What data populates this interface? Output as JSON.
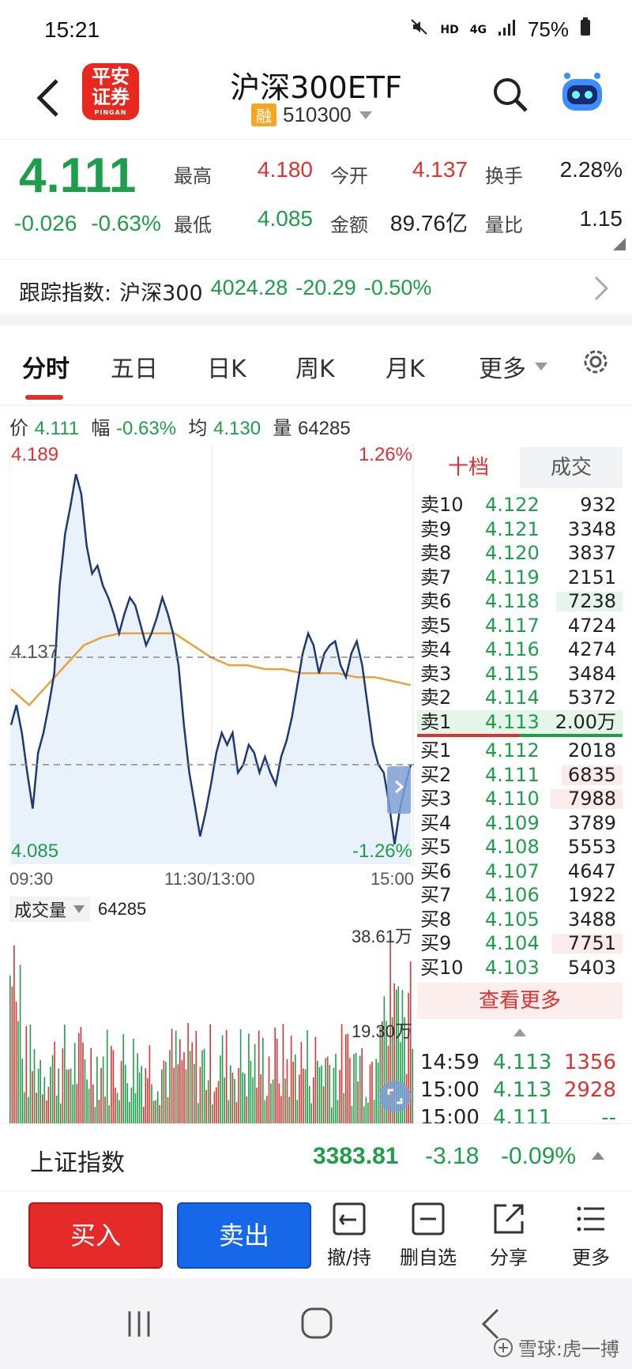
{
  "status": {
    "time": "15:21",
    "network": "HD",
    "signal": "4G",
    "battery": "75%"
  },
  "header": {
    "title": "沪深300ETF",
    "tag": "融",
    "code": "510300",
    "logo_top": "平安",
    "logo_bottom": "证券",
    "logo_sub": "PINGAN"
  },
  "quote": {
    "price": "4.111",
    "change": "-0.026",
    "change_pct": "-0.63%",
    "high_label": "最高",
    "high": "4.180",
    "low_label": "最低",
    "low": "4.085",
    "open_label": "今开",
    "open": "4.137",
    "amount_label": "金额",
    "amount": "89.76亿",
    "turnover_label": "换手",
    "turnover": "2.28%",
    "vol_ratio_label": "量比",
    "vol_ratio": "1.15"
  },
  "track": {
    "label": "跟踪指数:",
    "name": "沪深300",
    "value": "4024.28",
    "change": "-20.29",
    "pct": "-0.50%"
  },
  "tabs": [
    "分时",
    "五日",
    "日K",
    "周K",
    "月K",
    "更多"
  ],
  "info": {
    "price_label": "价",
    "price": "4.111",
    "range_label": "幅",
    "range": "-0.63%",
    "avg_label": "均",
    "avg": "4.130",
    "vol_label": "量",
    "vol": "64285"
  },
  "chart_labels": {
    "top_left": "4.189",
    "mid_left": "4.137",
    "bottom_left": "4.085",
    "top_right": "1.26%",
    "bottom_right": "-1.26%",
    "t_start": "09:30",
    "t_mid": "11:30/13:00",
    "t_end": "15:00"
  },
  "volume": {
    "selector": "成交量",
    "value": "64285",
    "max_label": "38.61万",
    "mid_label": "19.30万"
  },
  "book": {
    "tab_on": "十档",
    "tab_off": "成交",
    "asks": [
      {
        "label": "卖10",
        "price": "4.122",
        "vol": "932",
        "fill": 0.0
      },
      {
        "label": "卖9",
        "price": "4.121",
        "vol": "3348",
        "fill": 0.0
      },
      {
        "label": "卖8",
        "price": "4.120",
        "vol": "3837",
        "fill": 0.0
      },
      {
        "label": "卖7",
        "price": "4.119",
        "vol": "2151",
        "fill": 0.0
      },
      {
        "label": "卖6",
        "price": "4.118",
        "vol": "7238",
        "fill": 0.35
      },
      {
        "label": "卖5",
        "price": "4.117",
        "vol": "4724",
        "fill": 0.0
      },
      {
        "label": "卖4",
        "price": "4.116",
        "vol": "4274",
        "fill": 0.0
      },
      {
        "label": "卖3",
        "price": "4.115",
        "vol": "3484",
        "fill": 0.0
      },
      {
        "label": "卖2",
        "price": "4.114",
        "vol": "5372",
        "fill": 0.0
      },
      {
        "label": "卖1",
        "price": "4.113",
        "vol": "2.00万",
        "fill": 1.0
      }
    ],
    "bids": [
      {
        "label": "买1",
        "price": "4.112",
        "vol": "2018",
        "fill": 0.0
      },
      {
        "label": "买2",
        "price": "4.111",
        "vol": "6835",
        "fill": 0.32
      },
      {
        "label": "买3",
        "price": "4.110",
        "vol": "7988",
        "fill": 0.38
      },
      {
        "label": "买4",
        "price": "4.109",
        "vol": "3789",
        "fill": 0.0
      },
      {
        "label": "买5",
        "price": "4.108",
        "vol": "5553",
        "fill": 0.0
      },
      {
        "label": "买6",
        "price": "4.107",
        "vol": "4647",
        "fill": 0.0
      },
      {
        "label": "买7",
        "price": "4.106",
        "vol": "1922",
        "fill": 0.0
      },
      {
        "label": "买8",
        "price": "4.105",
        "vol": "3488",
        "fill": 0.0
      },
      {
        "label": "买9",
        "price": "4.104",
        "vol": "7751",
        "fill": 0.37
      },
      {
        "label": "买10",
        "price": "4.103",
        "vol": "5403",
        "fill": 0.0
      }
    ],
    "more": "查看更多",
    "trades": [
      {
        "time": "14:59",
        "price": "4.113",
        "vol": "1356"
      },
      {
        "time": "15:00",
        "price": "4.113",
        "vol": "2928"
      },
      {
        "time": "15:00",
        "price": "4.111",
        "vol": "--"
      }
    ]
  },
  "index_bar": {
    "name": "上证指数",
    "value": "3383.81",
    "change": "-3.18",
    "pct": "-0.09%"
  },
  "actions": {
    "buy": "买入",
    "sell": "卖出",
    "cancel": "撤/持",
    "remove": "删自选",
    "share": "分享",
    "more": "更多"
  },
  "watermark": "雪球:虎一搏",
  "colors": {
    "up": "#e03131",
    "down": "#1e9e4a",
    "line": "#1f3a73",
    "avg": "#e8a23a",
    "buy": "#e52a2a",
    "sell": "#1668e8"
  },
  "chart_data": {
    "type": "line",
    "ylim": [
      4.085,
      4.189
    ],
    "prev_close": 4.137,
    "x_labels": [
      "09:30",
      "11:30/13:00",
      "15:00"
    ],
    "series": [
      {
        "values": [
          4.12,
          4.125,
          4.118,
          4.108,
          4.099,
          4.113,
          4.118,
          4.125,
          4.133,
          4.155,
          4.168,
          4.175,
          4.183,
          4.178,
          4.165,
          4.158,
          4.16,
          4.155,
          4.152,
          4.148,
          4.143,
          4.148,
          4.152,
          4.15,
          4.145,
          4.14,
          4.143,
          4.147,
          4.152,
          4.148,
          4.143,
          4.135,
          4.12,
          4.108,
          4.1,
          4.092,
          4.098,
          4.105,
          4.113,
          4.118,
          4.115,
          4.118,
          4.108,
          4.11,
          4.115,
          4.113,
          4.108,
          4.112,
          4.108,
          4.105,
          4.112,
          4.116,
          4.122,
          4.13,
          4.138,
          4.143,
          4.14,
          4.133,
          4.138,
          4.14,
          4.141,
          4.135,
          4.132,
          4.138,
          4.141,
          4.135,
          4.125,
          4.115,
          4.11,
          4.108,
          4.1,
          4.09,
          4.099,
          4.105,
          4.11
        ]
      },
      {
        "values": [
          4.129,
          4.125,
          4.13,
          4.135,
          4.14,
          4.142,
          4.143,
          4.143,
          4.143,
          4.143,
          4.14,
          4.137,
          4.135,
          4.135,
          4.134,
          4.134,
          4.133,
          4.133,
          4.133,
          4.132,
          4.132,
          4.131,
          4.13
        ]
      }
    ],
    "volume_series": {
      "ylim": [
        0,
        386100
      ]
    }
  }
}
